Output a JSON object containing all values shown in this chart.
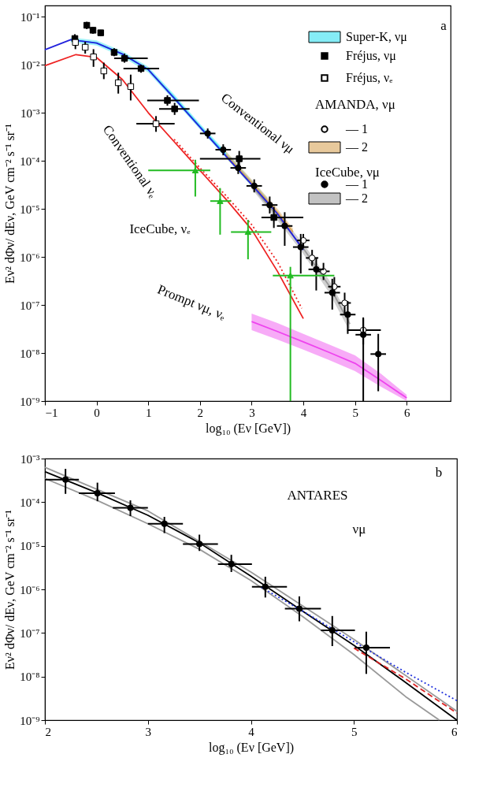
{
  "chart_data": [
    {
      "type": "line",
      "xlabel": "log₁₀ (Eν [GeV])",
      "ylabel": "Eν² dΦν/ dEν, GeV cm⁻² s⁻¹ sr⁻¹",
      "log": "y",
      "grid": false,
      "legend": "top right",
      "xlim": [
        -1,
        6.85
      ],
      "ylim": [
        1e-09,
        0.17
      ],
      "xticks": [
        {
          "value": -1,
          "label": "−1"
        },
        0,
        1,
        2,
        3,
        4,
        5,
        6
      ],
      "yticks": [
        {
          "value": 0.1,
          "label": "10⁻¹"
        },
        {
          "value": 0.01,
          "label": "10⁻²"
        },
        {
          "value": 0.001,
          "label": "10⁻³"
        },
        {
          "value": 0.0001,
          "label": "10⁻⁴"
        },
        {
          "value": 1e-05,
          "label": "10⁻⁵"
        },
        {
          "value": 1e-06,
          "label": "10⁻⁶"
        },
        {
          "value": 1e-07,
          "label": "10⁻⁷"
        },
        {
          "value": 1e-08,
          "label": "10⁻⁸"
        },
        {
          "value": 1e-09,
          "label": "10⁻⁹"
        }
      ],
      "annotations": [
        "a",
        "AMANDA, νμ",
        "IceCube, νμ",
        "Conventional νμ",
        "Conventional νₑ",
        "IceCube, νₑ",
        "Prompt νμ, νₑ"
      ],
      "series": [
        {
          "name": "Super-K, νμ",
          "type": "line",
          "color": "#33e0f0",
          "x": [
            -0.5,
            0,
            0.5,
            1,
            1.5,
            2,
            2.5,
            3,
            3.3
          ],
          "values": [
            0.0331,
            0.0282,
            0.0166,
            0.0079,
            0.0021,
            0.00052,
            0.000135,
            3.4e-05,
            1.45e-05
          ],
          "lower": [
            0.029,
            0.025,
            0.0145,
            0.0069,
            0.0018,
            0.00045,
            0.000115,
            2.9e-05,
            1.25e-05
          ],
          "upper": [
            0.037,
            0.032,
            0.019,
            0.009,
            0.0024,
            0.00059,
            0.000155,
            3.9e-05,
            1.7e-05
          ]
        },
        {
          "name": "Fréjus, νμ",
          "type": "scatter",
          "marker": "square",
          "color": "#000000",
          "x": [
            -0.42,
            -0.19,
            -0.07,
            0.08,
            0.34,
            0.54,
            0.86,
            1.37,
            1.51,
            2.76,
            3.43
          ],
          "values": [
            0.035,
            0.066,
            0.052,
            0.046,
            0.018,
            0.0135,
            0.0083,
            0.0018,
            0.0012,
            0.00011,
            6.6e-06
          ],
          "errors": [
            [
              0.028,
              0.043
            ],
            [
              0.055,
              0.078
            ],
            [
              0.044,
              0.06
            ],
            [
              0.039,
              0.053
            ],
            [
              0.015,
              0.022
            ],
            [
              0.011,
              0.017
            ],
            [
              0.0068,
              0.01
            ],
            [
              0.0014,
              0.0023
            ],
            [
              0.0009,
              0.0016
            ],
            [
              7e-05,
              0.00016
            ],
            [
              4e-06,
              1.1e-05
            ]
          ],
          "xerrors": [
            null,
            null,
            null,
            null,
            null,
            [
              0.34,
              0.99
            ],
            [
              0.52,
              1.21
            ],
            [
              0.98,
              1.98
            ],
            [
              1.21,
              1.8
            ],
            [
              2.0,
              3.17
            ],
            [
              3.19,
              4.0
            ]
          ]
        },
        {
          "name": "Fréjus, νₑ",
          "type": "scatter",
          "marker": "square",
          "color": "#ffffff",
          "x": [
            -0.41,
            -0.22,
            -0.06,
            0.14,
            0.42,
            0.66,
            1.15
          ],
          "values": [
            0.029,
            0.023,
            0.0145,
            0.0074,
            0.0042,
            0.0035,
            0.00059
          ],
          "errors": [
            [
              0.021,
              0.039
            ],
            [
              0.017,
              0.03
            ],
            [
              0.009,
              0.021
            ],
            [
              0.005,
              0.011
            ],
            [
              0.0025,
              0.0068
            ],
            [
              0.0018,
              0.0062
            ],
            [
              0.0004,
              0.00085
            ]
          ],
          "xerrors": [
            null,
            null,
            null,
            null,
            null,
            null,
            [
              0.77,
              1.51
            ]
          ]
        },
        {
          "name": "— 1",
          "type": "scatter",
          "marker": "circle",
          "color": "#ffffff",
          "x": [
            4.0,
            4.17,
            4.39,
            4.6,
            4.8,
            5.16
          ],
          "values": [
            2.2e-06,
            9.5e-07,
            5e-07,
            2.4e-07,
            1.1e-07,
            3e-08
          ],
          "errors": [
            [
              1.6e-06,
              3e-06
            ],
            [
              6.5e-07,
              1.4e-06
            ],
            [
              3.3e-07,
              7.5e-07
            ],
            [
              1.5e-07,
              3.8e-07
            ],
            [
              6.5e-08,
              1.8e-07
            ],
            [
              1.5e-08,
              5.5e-08
            ]
          ],
          "xerrors": [
            0.12,
            0.12,
            0.12,
            0.12,
            0.12,
            [
              4.85,
              5.5
            ]
          ]
        },
        {
          "name": "— 2",
          "type": "line",
          "color": "#d9a55a",
          "x": [
            2.5,
            3,
            3.5,
            3.8
          ],
          "values": [
            0.000135,
            3.5e-05,
            8.5e-06,
            3.3e-06
          ],
          "lower": [
            0.000115,
            3e-05,
            7.2e-06,
            2.8e-06
          ],
          "upper": [
            0.00016,
            4.1e-05,
            1e-05,
            3.9e-06
          ]
        },
        {
          "name": "— 1",
          "type": "scatter",
          "marker": "circle",
          "color": "#000000",
          "x": [
            2.15,
            2.45,
            2.74,
            3.05,
            3.35,
            3.64,
            3.95,
            4.25,
            4.56,
            4.86,
            5.16,
            5.45
          ],
          "values": [
            0.00037,
            0.00017,
            7.1e-05,
            3e-05,
            1.2e-05,
            4.4e-06,
            1.6e-06,
            5.5e-07,
            1.8e-07,
            6.3e-08,
            2.4e-08,
            9.5e-09
          ],
          "errors": [
            [
              0.00029,
              0.00047
            ],
            [
              0.00013,
              0.00022
            ],
            [
              5.3e-05,
              9.5e-05
            ],
            [
              2.2e-05,
              4.1e-05
            ],
            [
              8e-06,
              1.8e-05
            ],
            [
              1.7e-06,
              8.5e-06
            ],
            [
              4.5e-07,
              3e-06
            ],
            [
              2e-07,
              9.5e-07
            ],
            [
              8e-08,
              3.5e-07
            ],
            [
              2.5e-08,
              1.2e-07
            ],
            [
              1e-09,
              5.2e-08
            ],
            [
              1.6e-09,
              2.5e-08
            ]
          ],
          "xerrors": [
            0.15,
            0.15,
            0.15,
            0.15,
            0.15,
            0.15,
            0.15,
            0.15,
            0.15,
            0.15,
            0.15,
            0.15
          ]
        },
        {
          "name": "— 2",
          "type": "line",
          "color": "#9a9a9a",
          "x": [
            3,
            3.5,
            4,
            4.5,
            4.9
          ],
          "values": [
            3e-05,
            7e-06,
            1.5e-06,
            2.5e-07,
            4e-08
          ],
          "lower": [
            2.6e-05,
            5.8e-06,
            1.15e-06,
            1.8e-07,
            2.8e-08
          ],
          "upper": [
            3.5e-05,
            8.3e-06,
            1.9e-06,
            3.3e-07,
            5.2e-08
          ]
        },
        {
          "type": "line",
          "color": "#2222dd",
          "x": [
            -1,
            -0.5,
            0,
            0.5,
            1,
            1.5,
            2,
            2.5,
            3,
            3.5,
            4
          ],
          "values": [
            0.0204,
            0.0331,
            0.0282,
            0.0166,
            0.0079,
            0.002,
            0.0005,
            0.000126,
            3.2e-05,
            7.9e-06,
            1.4e-06
          ]
        },
        {
          "type": "line",
          "color": "#ee2222",
          "x": [
            -1,
            -0.4,
            0,
            0.5,
            1,
            1.5,
            2,
            2.5,
            3,
            3.5,
            4
          ],
          "values": [
            0.0095,
            0.0162,
            0.0141,
            0.0049,
            0.001,
            0.00025,
            6.3e-05,
            1.6e-05,
            3.7e-06,
            5e-07,
            5.2e-08
          ]
        },
        {
          "type": "line",
          "line_style": "dotted",
          "color": "#ee2222",
          "x": [
            1.5,
            2,
            2.5,
            3,
            3.5,
            3.97
          ],
          "values": [
            0.00028,
            7.1e-05,
            1.9e-05,
            4.7e-06,
            7.9e-07,
            8.5e-08
          ]
        },
        {
          "type": "line",
          "color": "#ee44ee",
          "x": [
            3,
            3.5,
            4,
            4.5,
            5,
            5.5,
            6
          ],
          "values": [
            4.5e-08,
            2.8e-08,
            1.7e-08,
            1.03e-08,
            6.1e-09,
            2.7e-09,
            1.16e-09
          ],
          "lower": [
            3e-08,
            1.9e-08,
            1.17e-08,
            7.1e-09,
            4.2e-09,
            2e-09,
            1e-09
          ],
          "upper": [
            6.6e-08,
            4.2e-08,
            2.5e-08,
            1.5e-08,
            8.9e-09,
            3.7e-09,
            1.35e-09
          ]
        },
        {
          "type": "scatter",
          "marker": "triangle",
          "color": "#22bb22",
          "x": [
            1.91,
            2.39,
            2.93,
            3.75
          ],
          "values": [
            6.3e-05,
            1.45e-05,
            3.3e-06,
            4.1e-07
          ],
          "errors": [
            [
              1.8e-05,
              0.000105
            ],
            [
              2.9e-06,
              2.7e-05
            ],
            [
              8.9e-07,
              5.9e-06
            ],
            [
              1e-09,
              6.2e-07
            ]
          ],
          "xerrors": [
            [
              1.0,
              2.2
            ],
            [
              2.2,
              2.6
            ],
            [
              2.6,
              3.38
            ],
            [
              3.41,
              4.6
            ]
          ]
        }
      ]
    },
    {
      "type": "line",
      "xlabel": "log₁₀ (Eν [GeV])",
      "ylabel": "Eν² dΦν/ dEν, GeV cm⁻² s⁻¹ sr⁻¹",
      "log": "y",
      "grid": false,
      "xlim": [
        2,
        6
      ],
      "ylim": [
        1e-09,
        0.001
      ],
      "xticks": [
        2,
        3,
        4,
        5,
        6
      ],
      "yticks": [
        {
          "value": 0.001,
          "label": "10⁻³"
        },
        {
          "value": 0.0001,
          "label": "10⁻⁴"
        },
        {
          "value": 1e-05,
          "label": "10⁻⁵"
        },
        {
          "value": 1e-06,
          "label": "10⁻⁶"
        },
        {
          "value": 1e-07,
          "label": "10⁻⁷"
        },
        {
          "value": 1e-08,
          "label": "10⁻⁸"
        },
        {
          "value": 1e-09,
          "label": "10⁻⁹"
        }
      ],
      "annotations": [
        "b",
        "ANTARES",
        "νμ"
      ],
      "series": [
        {
          "type": "line",
          "color": "#000000",
          "x": [
            2,
            2.5,
            3,
            3.5,
            4,
            4.5,
            5,
            5.5,
            6
          ],
          "values": [
            0.0005,
            0.000166,
            5e-05,
            1.17e-05,
            2e-06,
            3.2e-07,
            5.2e-08,
            7.4e-09,
            1e-09
          ]
        },
        {
          "type": "line",
          "color": "#999999",
          "x": [
            2,
            3,
            4,
            5,
            6
          ],
          "values": [
            0.00063,
            6.3e-05,
            2.5e-06,
            7.1e-08,
            1.6e-09
          ]
        },
        {
          "type": "line",
          "color": "#999999",
          "x": [
            2,
            2.5,
            3,
            3.5,
            4,
            4.5,
            5,
            5.5,
            5.83
          ],
          "values": [
            0.00035,
            0.000112,
            3.2e-05,
            8.3e-06,
            1.6e-06,
            2.4e-07,
            3.2e-08,
            3.5e-09,
            1e-09
          ]
        },
        {
          "type": "line",
          "line_style": "dotted",
          "color": "#2233dd",
          "x": [
            4.1,
            4.5,
            5,
            5.5,
            6
          ],
          "values": [
            1.12e-06,
            3.2e-07,
            6.3e-08,
            1.26e-08,
            2.8e-09
          ]
        },
        {
          "type": "line",
          "line_style": "dashed",
          "color": "#dd2222",
          "x": [
            5,
            5.5,
            6
          ],
          "values": [
            4.5e-08,
            8.9e-09,
            1.45e-09
          ]
        },
        {
          "type": "scatter",
          "marker": "circle",
          "color": "#000000",
          "x": [
            2.2,
            2.51,
            2.83,
            3.16,
            3.5,
            3.81,
            4.14,
            4.47,
            4.79,
            5.12
          ],
          "values": [
            0.00033,
            0.00016,
            7.4e-05,
            3.2e-05,
            1.1e-05,
            3.8e-06,
            1.15e-06,
            3.6e-07,
            1.15e-07,
            4.6e-08
          ],
          "errors": [
            [
              0.000155,
              0.00058
            ],
            [
              0.000105,
              0.00028
            ],
            [
              4.8e-05,
              0.00011
            ],
            [
              1.95e-05,
              4.6e-05
            ],
            [
              7.6e-06,
              1.8e-05
            ],
            [
              2.5e-06,
              6.2e-06
            ],
            [
              6.5e-07,
              1.95e-06
            ],
            [
              1.85e-07,
              6.9e-07
            ],
            [
              5e-08,
              2.45e-07
            ],
            [
              1.15e-08,
              1.07e-07
            ]
          ],
          "xerrors": [
            [
              2.0,
              2.33
            ],
            [
              2.33,
              2.68
            ],
            [
              2.66,
              3.0
            ],
            [
              3.0,
              3.34
            ],
            [
              3.34,
              3.68
            ],
            [
              3.68,
              4.01
            ],
            [
              4.01,
              4.35
            ],
            [
              4.33,
              4.68
            ],
            [
              4.68,
              5.01
            ],
            [
              5.01,
              5.35
            ]
          ]
        }
      ]
    }
  ]
}
